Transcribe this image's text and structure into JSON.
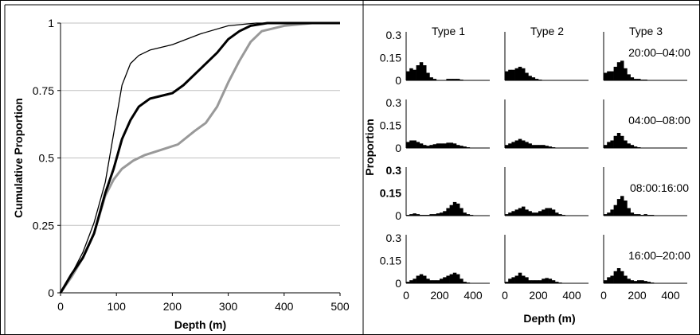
{
  "chart_data": [
    {
      "type": "line",
      "xlabel": "Depth (m)",
      "ylabel": "Cumulative Proportion",
      "xlim": [
        0,
        500
      ],
      "ylim": [
        0,
        1
      ],
      "xticks": [
        "0",
        "100",
        "200",
        "300",
        "400",
        "500"
      ],
      "yticks": [
        "0",
        "0.25",
        "0.5",
        "0.75",
        "1"
      ],
      "grid": "horizontal",
      "series": [
        {
          "color": "#000000",
          "width": 1.3,
          "points": [
            [
              0,
              0
            ],
            [
              20,
              0.07
            ],
            [
              40,
              0.15
            ],
            [
              60,
              0.26
            ],
            [
              80,
              0.41
            ],
            [
              95,
              0.59
            ],
            [
              110,
              0.77
            ],
            [
              125,
              0.85
            ],
            [
              140,
              0.88
            ],
            [
              160,
              0.9
            ],
            [
              200,
              0.92
            ],
            [
              250,
              0.96
            ],
            [
              300,
              0.99
            ],
            [
              350,
              1.0
            ],
            [
              500,
              1.0
            ]
          ]
        },
        {
          "color": "#000000",
          "width": 3,
          "points": [
            [
              0,
              0
            ],
            [
              20,
              0.07
            ],
            [
              40,
              0.13
            ],
            [
              60,
              0.22
            ],
            [
              80,
              0.37
            ],
            [
              95,
              0.46
            ],
            [
              110,
              0.57
            ],
            [
              125,
              0.64
            ],
            [
              140,
              0.69
            ],
            [
              160,
              0.72
            ],
            [
              180,
              0.73
            ],
            [
              200,
              0.74
            ],
            [
              220,
              0.77
            ],
            [
              240,
              0.81
            ],
            [
              260,
              0.85
            ],
            [
              280,
              0.89
            ],
            [
              300,
              0.94
            ],
            [
              320,
              0.97
            ],
            [
              340,
              0.99
            ],
            [
              370,
              1.0
            ],
            [
              500,
              1.0
            ]
          ]
        },
        {
          "color": "#999999",
          "width": 3,
          "points": [
            [
              0,
              0
            ],
            [
              20,
              0.06
            ],
            [
              40,
              0.13
            ],
            [
              60,
              0.22
            ],
            [
              80,
              0.36
            ],
            [
              95,
              0.42
            ],
            [
              110,
              0.46
            ],
            [
              130,
              0.49
            ],
            [
              150,
              0.51
            ],
            [
              180,
              0.53
            ],
            [
              210,
              0.55
            ],
            [
              240,
              0.6
            ],
            [
              260,
              0.63
            ],
            [
              280,
              0.69
            ],
            [
              300,
              0.78
            ],
            [
              320,
              0.86
            ],
            [
              340,
              0.93
            ],
            [
              360,
              0.97
            ],
            [
              400,
              0.99
            ],
            [
              450,
              1.0
            ],
            [
              500,
              1.0
            ]
          ]
        }
      ]
    },
    {
      "type": "bar",
      "ylabel": "Proportion",
      "xlabel": "Depth (m)",
      "xlim": [
        0,
        500
      ],
      "ylim": [
        0,
        0.3
      ],
      "yticks": [
        "0",
        "0.15",
        "0.3"
      ],
      "yticks_bold_row3": [
        "0",
        "0.15",
        "0.3"
      ],
      "xticks": [
        "0",
        "200",
        "400"
      ],
      "columns": [
        "Type 1",
        "Type 2",
        "Type 3"
      ],
      "rows": [
        "20:00–04:00",
        "04:00–08:00",
        "08:00:16:00",
        "16:00–20:00"
      ],
      "bin_width": 20,
      "panels": [
        [
          [
            0.06,
            0.08,
            0.07,
            0.1,
            0.12,
            0.1,
            0.05,
            0.02,
            0.01,
            0,
            0,
            0,
            0.01,
            0.01,
            0.01,
            0.01,
            0.005,
            0,
            0,
            0,
            0,
            0,
            0,
            0,
            0
          ],
          [
            0.06,
            0.07,
            0.07,
            0.08,
            0.09,
            0.08,
            0.05,
            0.03,
            0.02,
            0.01,
            0.005,
            0,
            0,
            0,
            0,
            0,
            0,
            0,
            0,
            0,
            0,
            0,
            0,
            0,
            0
          ],
          [
            0.05,
            0.06,
            0.06,
            0.09,
            0.12,
            0.13,
            0.08,
            0.04,
            0.02,
            0.01,
            0.01,
            0.005,
            0.005,
            0,
            0,
            0,
            0,
            0,
            0,
            0,
            0,
            0,
            0,
            0,
            0
          ]
        ],
        [
          [
            0.04,
            0.05,
            0.05,
            0.04,
            0.03,
            0.02,
            0.015,
            0.02,
            0.025,
            0.03,
            0.03,
            0.03,
            0.035,
            0.035,
            0.03,
            0.02,
            0.015,
            0.01,
            0.005,
            0,
            0,
            0,
            0,
            0,
            0
          ],
          [
            0.02,
            0.03,
            0.04,
            0.05,
            0.06,
            0.05,
            0.04,
            0.03,
            0.02,
            0.02,
            0.02,
            0.02,
            0.015,
            0.01,
            0.005,
            0,
            0,
            0,
            0,
            0,
            0,
            0,
            0,
            0,
            0
          ],
          [
            0.02,
            0.04,
            0.05,
            0.08,
            0.1,
            0.08,
            0.05,
            0.03,
            0.02,
            0.01,
            0.005,
            0,
            0,
            0,
            0,
            0,
            0,
            0,
            0,
            0,
            0,
            0,
            0,
            0,
            0
          ]
        ],
        [
          [
            0.005,
            0.01,
            0.015,
            0.01,
            0.005,
            0.005,
            0.005,
            0.01,
            0.01,
            0.015,
            0.02,
            0.03,
            0.05,
            0.07,
            0.09,
            0.08,
            0.05,
            0.02,
            0.01,
            0.005,
            0,
            0,
            0,
            0,
            0
          ],
          [
            0.01,
            0.02,
            0.03,
            0.04,
            0.05,
            0.06,
            0.04,
            0.03,
            0.02,
            0.02,
            0.03,
            0.04,
            0.05,
            0.05,
            0.04,
            0.02,
            0.01,
            0.005,
            0,
            0,
            0,
            0,
            0,
            0,
            0
          ],
          [
            0.01,
            0.02,
            0.04,
            0.07,
            0.11,
            0.13,
            0.1,
            0.05,
            0.02,
            0.01,
            0.01,
            0.005,
            0.01,
            0.005,
            0.005,
            0,
            0,
            0,
            0,
            0,
            0,
            0,
            0,
            0,
            0
          ]
        ],
        [
          [
            0.01,
            0.02,
            0.03,
            0.05,
            0.06,
            0.05,
            0.03,
            0.02,
            0.02,
            0.02,
            0.03,
            0.04,
            0.05,
            0.06,
            0.07,
            0.06,
            0.03,
            0.01,
            0.005,
            0,
            0,
            0,
            0,
            0,
            0
          ],
          [
            0.01,
            0.03,
            0.04,
            0.05,
            0.07,
            0.05,
            0.04,
            0.02,
            0.02,
            0.02,
            0.02,
            0.03,
            0.035,
            0.03,
            0.02,
            0.01,
            0.005,
            0,
            0,
            0,
            0,
            0,
            0,
            0,
            0
          ],
          [
            0.02,
            0.04,
            0.05,
            0.08,
            0.1,
            0.08,
            0.05,
            0.03,
            0.02,
            0.015,
            0.02,
            0.02,
            0.015,
            0.01,
            0.005,
            0,
            0,
            0,
            0,
            0,
            0,
            0,
            0,
            0,
            0
          ]
        ]
      ]
    }
  ]
}
